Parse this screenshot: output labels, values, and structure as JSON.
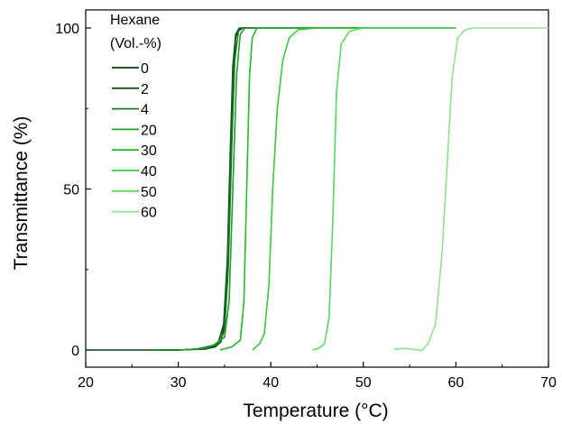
{
  "chart_data": {
    "type": "line",
    "title": "",
    "xlabel": "Temperature (°C)",
    "ylabel": "Transmittance (%)",
    "xlim": [
      20,
      70
    ],
    "ylim": [
      -5,
      105
    ],
    "x_ticks": [
      20,
      30,
      40,
      50,
      60,
      70
    ],
    "y_ticks": [
      0,
      50,
      100
    ],
    "grid": false,
    "legend": {
      "title_line1": "Hexane",
      "title_line2": "(Vol.-%)",
      "placement": "top-left"
    },
    "series": [
      {
        "name": "0",
        "color": "#0b3d0b",
        "points": [
          [
            20,
            0
          ],
          [
            30,
            0
          ],
          [
            33,
            0.3
          ],
          [
            34,
            1
          ],
          [
            34.6,
            2.5
          ],
          [
            35,
            8
          ],
          [
            35.3,
            22
          ],
          [
            35.6,
            55
          ],
          [
            35.9,
            85
          ],
          [
            36.2,
            97
          ],
          [
            36.5,
            99.5
          ],
          [
            37,
            100
          ],
          [
            60,
            100
          ]
        ]
      },
      {
        "name": "2",
        "color": "#14571a",
        "points": [
          [
            28,
            0
          ],
          [
            30,
            0
          ],
          [
            33,
            0.5
          ],
          [
            34.3,
            2
          ],
          [
            34.9,
            8
          ],
          [
            35.3,
            28
          ],
          [
            35.6,
            60
          ],
          [
            35.9,
            88
          ],
          [
            36.2,
            98
          ],
          [
            36.6,
            100
          ],
          [
            60,
            100
          ]
        ]
      },
      {
        "name": "4",
        "color": "#1b7a23",
        "points": [
          [
            27,
            0
          ],
          [
            30,
            0
          ],
          [
            33,
            0.4
          ],
          [
            34.4,
            2
          ],
          [
            35,
            6
          ],
          [
            35.4,
            25
          ],
          [
            35.8,
            65
          ],
          [
            36.1,
            90
          ],
          [
            36.5,
            99
          ],
          [
            37,
            100
          ],
          [
            60,
            100
          ]
        ]
      },
      {
        "name": "20",
        "color": "#1f9e29",
        "points": [
          [
            30,
            0
          ],
          [
            32,
            0.3
          ],
          [
            33.8,
            1.5
          ],
          [
            35,
            4
          ],
          [
            35.5,
            15
          ],
          [
            35.9,
            50
          ],
          [
            36.3,
            85
          ],
          [
            36.7,
            98
          ],
          [
            37.2,
            100
          ],
          [
            60,
            100
          ]
        ]
      },
      {
        "name": "30",
        "color": "#26b82f",
        "points": [
          [
            34.5,
            0
          ],
          [
            35.8,
            1
          ],
          [
            36.7,
            3
          ],
          [
            37.1,
            15
          ],
          [
            37.4,
            50
          ],
          [
            37.7,
            85
          ],
          [
            38,
            97
          ],
          [
            38.5,
            100
          ],
          [
            60,
            100
          ]
        ]
      },
      {
        "name": "40",
        "color": "#39c83f",
        "points": [
          [
            38,
            0
          ],
          [
            38.8,
            2
          ],
          [
            39.3,
            5
          ],
          [
            39.8,
            20
          ],
          [
            40.2,
            50
          ],
          [
            40.7,
            75
          ],
          [
            41.3,
            90
          ],
          [
            42,
            97
          ],
          [
            43,
            99.5
          ],
          [
            45,
            100
          ],
          [
            60,
            100
          ]
        ]
      },
      {
        "name": "50",
        "color": "#5cd75f",
        "points": [
          [
            44.5,
            0
          ],
          [
            45.2,
            0.5
          ],
          [
            45.8,
            2
          ],
          [
            46.3,
            10
          ],
          [
            46.7,
            40
          ],
          [
            47.1,
            80
          ],
          [
            47.6,
            95
          ],
          [
            48.5,
            99
          ],
          [
            50,
            100
          ],
          [
            60,
            100
          ]
        ]
      },
      {
        "name": "60",
        "color": "#8ae58b",
        "points": [
          [
            53.3,
            0.2
          ],
          [
            54.5,
            0.5
          ],
          [
            55.5,
            0.2
          ],
          [
            56.3,
            -0.2
          ],
          [
            57,
            2
          ],
          [
            57.8,
            8
          ],
          [
            58.5,
            30
          ],
          [
            59.1,
            60
          ],
          [
            59.6,
            85
          ],
          [
            60.2,
            97
          ],
          [
            61,
            99.5
          ],
          [
            62,
            100
          ],
          [
            70,
            100
          ]
        ]
      }
    ]
  }
}
